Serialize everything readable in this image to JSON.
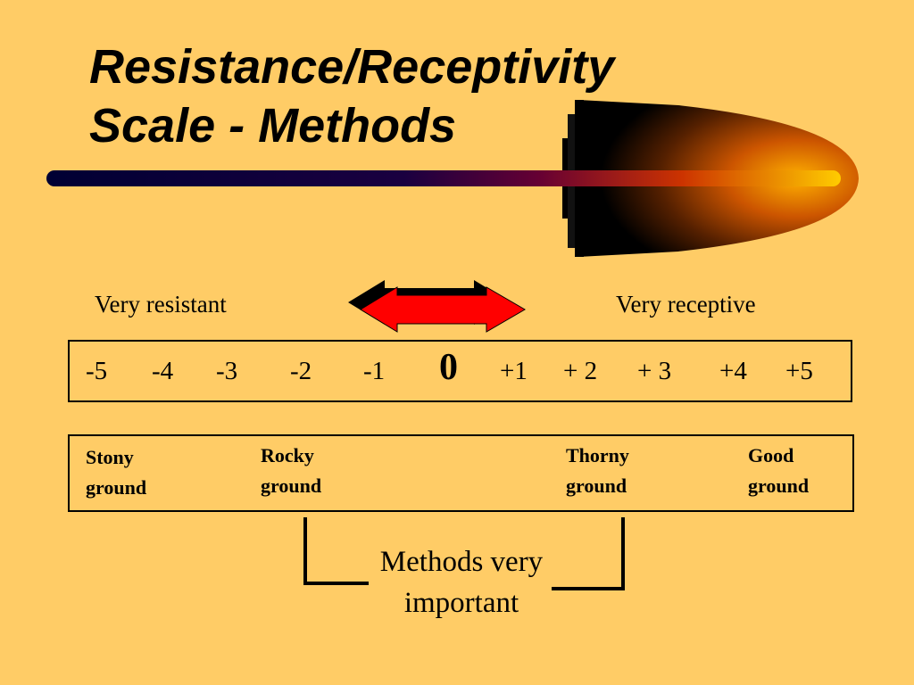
{
  "slide": {
    "title_line1": "Resistance/Receptivity",
    "title_line2": "Scale - Methods"
  },
  "scale": {
    "left_label": "Very resistant",
    "right_label": "Very receptive",
    "values": [
      "-5",
      "-4",
      "-3",
      "-2",
      "-1",
      "0",
      "+1",
      "+ 2",
      "+ 3",
      "+4",
      "+5"
    ]
  },
  "grounds": [
    {
      "line1": "Stony",
      "line2": "ground"
    },
    {
      "line1": "Rocky",
      "line2": "ground"
    },
    {
      "line1": "Thorny",
      "line2": "ground"
    },
    {
      "line1": "Good",
      "line2": "ground"
    }
  ],
  "methods": {
    "line1": "Methods very",
    "line2": "important"
  },
  "colors": {
    "background": "#FFCC66",
    "arrow": "#FF0000",
    "accent_dark": "#000066",
    "accent_bright": "#FF9900"
  }
}
